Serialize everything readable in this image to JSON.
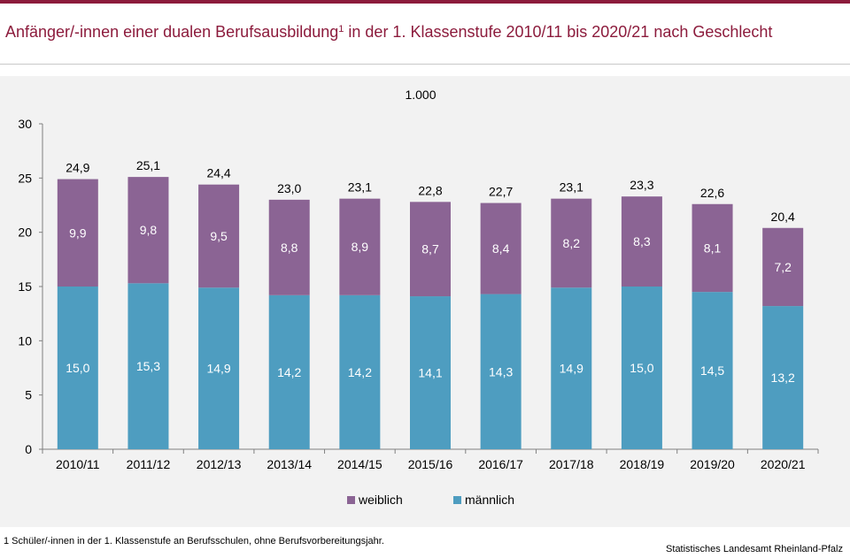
{
  "title": {
    "main": "Anfänger/-innen einer dualen Berufsausbildung",
    "superscript": "1",
    "rest": " in der 1. Klassenstufe 2010/11 bis 2020/21 nach Geschlecht"
  },
  "footnote": {
    "marker": "1",
    "text": " Schüler/-innen  in der 1. Klassenstufe an Berufsschulen,  ohne Berufsvorbereitungsjahr."
  },
  "source": "Statistisches Landesamt Rheinland-Pfalz",
  "colors": {
    "weiblich": "#8b6494",
    "maennlich": "#4e9dc0",
    "title": "#8c1b3c",
    "panel": "#f2f2f2"
  },
  "chart_data": {
    "type": "bar",
    "stacked": true,
    "unit_label": "1.000",
    "categories": [
      "2010/11",
      "2011/12",
      "2012/13",
      "2013/14",
      "2014/15",
      "2015/16",
      "2016/17",
      "2017/18",
      "2018/19",
      "2019/20",
      "2020/21"
    ],
    "series": [
      {
        "name": "männlich",
        "values": [
          15.0,
          15.3,
          14.9,
          14.2,
          14.2,
          14.1,
          14.3,
          14.9,
          15.0,
          14.5,
          13.2
        ],
        "labels": [
          "15,0",
          "15,3",
          "14,9",
          "14,2",
          "14,2",
          "14,1",
          "14,3",
          "14,9",
          "15,0",
          "14,5",
          "13,2"
        ]
      },
      {
        "name": "weiblich",
        "values": [
          9.9,
          9.8,
          9.5,
          8.8,
          8.9,
          8.7,
          8.4,
          8.2,
          8.3,
          8.1,
          7.2
        ],
        "labels": [
          "9,9",
          "9,8",
          "9,5",
          "8,8",
          "8,9",
          "8,7",
          "8,4",
          "8,2",
          "8,3",
          "8,1",
          "7,2"
        ]
      }
    ],
    "totals": [
      "24,9",
      "25,1",
      "24,4",
      "23,0",
      "23,1",
      "22,8",
      "22,7",
      "23,1",
      "23,3",
      "22,6",
      "20,4"
    ],
    "ylim": [
      0,
      30
    ],
    "yticks": [
      0,
      5,
      10,
      15,
      20,
      25,
      30
    ],
    "legend": [
      "weiblich",
      "männlich"
    ],
    "legend_position": "bottom",
    "grid": false
  }
}
